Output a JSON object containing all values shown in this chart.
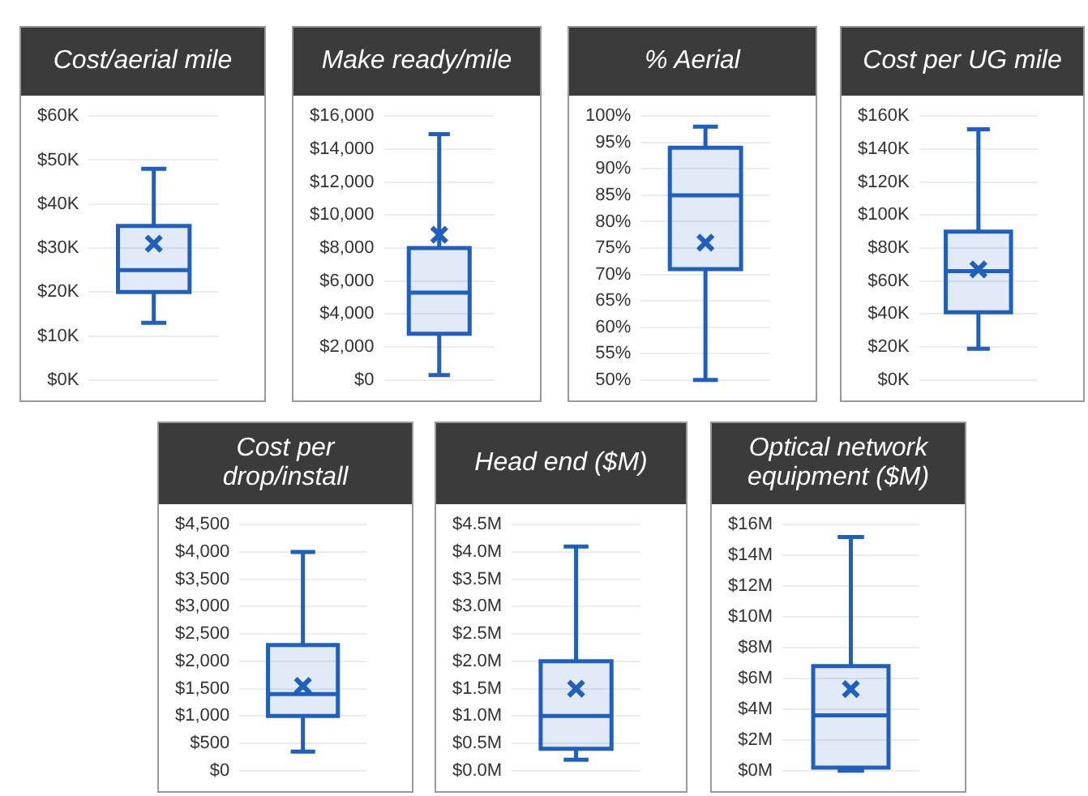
{
  "chart_data": [
    {
      "type": "box",
      "title": "Cost/aerial mile",
      "categories": [
        null
      ],
      "color": "#1f5fbf",
      "grid": "y",
      "tick_labels": "y",
      "boxes": [
        {
          "low": 13,
          "q1": 20,
          "median": 25,
          "q3": 35,
          "high": 48,
          "mean": 31
        }
      ],
      "ylim": [
        0,
        60
      ],
      "yticks": [
        {
          "value": 0,
          "label": "$0K"
        },
        {
          "value": 10,
          "label": "$10K"
        },
        {
          "value": 20,
          "label": "$20K"
        },
        {
          "value": 30,
          "label": "$30K"
        },
        {
          "value": 40,
          "label": "$40K"
        },
        {
          "value": 50,
          "label": "$50K"
        },
        {
          "value": 60,
          "label": "$60K"
        }
      ]
    },
    {
      "type": "box",
      "title": "Make ready/mile",
      "categories": [
        null
      ],
      "color": "#1f5fbf",
      "grid": "y",
      "tick_labels": "y",
      "boxes": [
        {
          "low": 300,
          "q1": 2800,
          "median": 5300,
          "q3": 8000,
          "high": 14900,
          "mean": 8800
        }
      ],
      "ylim": [
        0,
        16000
      ],
      "yticks": [
        {
          "value": 0,
          "label": "$0"
        },
        {
          "value": 2000,
          "label": "$2,000"
        },
        {
          "value": 4000,
          "label": "$4,000"
        },
        {
          "value": 6000,
          "label": "$6,000"
        },
        {
          "value": 8000,
          "label": "$8,000"
        },
        {
          "value": 10000,
          "label": "$10,000"
        },
        {
          "value": 12000,
          "label": "$12,000"
        },
        {
          "value": 14000,
          "label": "$14,000"
        },
        {
          "value": 16000,
          "label": "$16,000"
        }
      ]
    },
    {
      "type": "box",
      "title": "% Aerial",
      "categories": [
        null
      ],
      "color": "#1f5fbf",
      "grid": "y",
      "tick_labels": "y",
      "boxes": [
        {
          "low": 50,
          "q1": 71,
          "median": 85,
          "q3": 94,
          "high": 98,
          "mean": 76
        }
      ],
      "ylim": [
        50,
        100
      ],
      "yticks": [
        {
          "value": 50,
          "label": "50%"
        },
        {
          "value": 55,
          "label": "55%"
        },
        {
          "value": 60,
          "label": "60%"
        },
        {
          "value": 65,
          "label": "65%"
        },
        {
          "value": 70,
          "label": "70%"
        },
        {
          "value": 75,
          "label": "75%"
        },
        {
          "value": 80,
          "label": "80%"
        },
        {
          "value": 85,
          "label": "85%"
        },
        {
          "value": 90,
          "label": "90%"
        },
        {
          "value": 95,
          "label": "95%"
        },
        {
          "value": 100,
          "label": "100%"
        }
      ]
    },
    {
      "type": "box",
      "title": "Cost per UG mile",
      "categories": [
        null
      ],
      "color": "#1f5fbf",
      "grid": "y",
      "tick_labels": "y",
      "boxes": [
        {
          "low": 19,
          "q1": 41,
          "median": 66,
          "q3": 90,
          "high": 152,
          "mean": 67
        }
      ],
      "ylim": [
        0,
        160
      ],
      "yticks": [
        {
          "value": 0,
          "label": "$0K"
        },
        {
          "value": 20,
          "label": "$20K"
        },
        {
          "value": 40,
          "label": "$40K"
        },
        {
          "value": 60,
          "label": "$60K"
        },
        {
          "value": 80,
          "label": "$80K"
        },
        {
          "value": 100,
          "label": "$100K"
        },
        {
          "value": 120,
          "label": "$120K"
        },
        {
          "value": 140,
          "label": "$140K"
        },
        {
          "value": 160,
          "label": "$160K"
        }
      ]
    },
    {
      "type": "box",
      "title": "Cost per drop/install",
      "categories": [
        null
      ],
      "color": "#1f5fbf",
      "grid": "y",
      "tick_labels": "y",
      "boxes": [
        {
          "low": 350,
          "q1": 1000,
          "median": 1400,
          "q3": 2300,
          "high": 4000,
          "mean": 1550
        }
      ],
      "ylim": [
        0,
        4500
      ],
      "yticks": [
        {
          "value": 0,
          "label": "$0"
        },
        {
          "value": 500,
          "label": "$500"
        },
        {
          "value": 1000,
          "label": "$1,000"
        },
        {
          "value": 1500,
          "label": "$1,500"
        },
        {
          "value": 2000,
          "label": "$2,000"
        },
        {
          "value": 2500,
          "label": "$2,500"
        },
        {
          "value": 3000,
          "label": "$3,000"
        },
        {
          "value": 3500,
          "label": "$3,500"
        },
        {
          "value": 4000,
          "label": "$4,000"
        },
        {
          "value": 4500,
          "label": "$4,500"
        }
      ]
    },
    {
      "type": "box",
      "title": "Head end ($M)",
      "categories": [
        null
      ],
      "color": "#1f5fbf",
      "grid": "y",
      "tick_labels": "y",
      "boxes": [
        {
          "low": 0.2,
          "q1": 0.4,
          "median": 1.0,
          "q3": 2.0,
          "high": 4.1,
          "mean": 1.5
        }
      ],
      "ylim": [
        0,
        4.5
      ],
      "yticks": [
        {
          "value": 0,
          "label": "$0.0M"
        },
        {
          "value": 0.5,
          "label": "$0.5M"
        },
        {
          "value": 1,
          "label": "$1.0M"
        },
        {
          "value": 1.5,
          "label": "$1.5M"
        },
        {
          "value": 2,
          "label": "$2.0M"
        },
        {
          "value": 2.5,
          "label": "$2.5M"
        },
        {
          "value": 3,
          "label": "$3.0M"
        },
        {
          "value": 3.5,
          "label": "$3.5M"
        },
        {
          "value": 4,
          "label": "$4.0M"
        },
        {
          "value": 4.5,
          "label": "$4.5M"
        }
      ]
    },
    {
      "type": "box",
      "title": "Optical network equipment ($M)",
      "categories": [
        null
      ],
      "color": "#1f5fbf",
      "grid": "y",
      "tick_labels": "y",
      "boxes": [
        {
          "low": 0,
          "q1": 0.2,
          "median": 3.6,
          "q3": 6.8,
          "high": 15.2,
          "mean": 5.3
        }
      ],
      "ylim": [
        0,
        16
      ],
      "yticks": [
        {
          "value": 0,
          "label": "$0M"
        },
        {
          "value": 2,
          "label": "$2M"
        },
        {
          "value": 4,
          "label": "$4M"
        },
        {
          "value": 6,
          "label": "$6M"
        },
        {
          "value": 8,
          "label": "$8M"
        },
        {
          "value": 10,
          "label": "$10M"
        },
        {
          "value": 12,
          "label": "$12M"
        },
        {
          "value": 14,
          "label": "$14M"
        },
        {
          "value": 16,
          "label": "$16M"
        }
      ]
    }
  ]
}
